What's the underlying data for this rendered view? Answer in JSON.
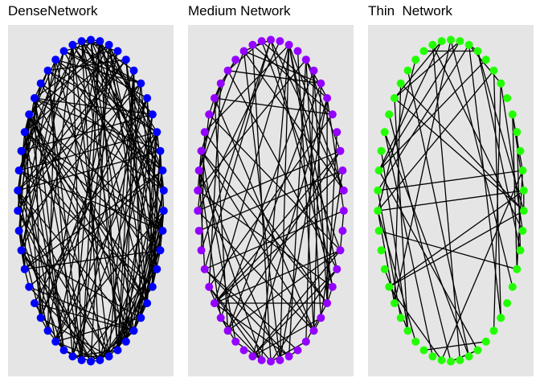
{
  "colors": {
    "panel_background": "#e5e5e5",
    "edge": "#000000"
  },
  "panels": [
    {
      "title": "DenseNetwork",
      "node_color": "#0000ff",
      "node_count": 50,
      "edge_count": 185
    },
    {
      "title": "Medium Network",
      "node_color": "#9400ff",
      "node_count": 50,
      "edge_count": 95
    },
    {
      "title": "Thin  Network",
      "node_color": "#22ff00",
      "node_count": 50,
      "edge_count": 50
    }
  ]
}
